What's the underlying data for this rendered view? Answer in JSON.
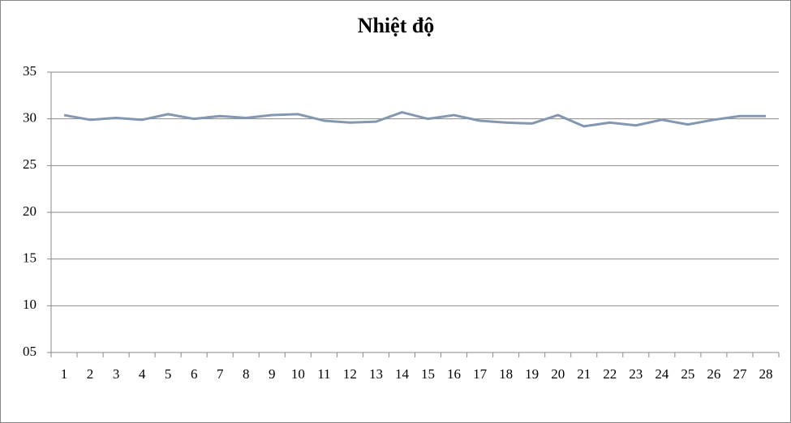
{
  "chart_data": {
    "type": "line",
    "title": "Nhiệt độ",
    "categories": [
      "1",
      "2",
      "3",
      "4",
      "5",
      "6",
      "7",
      "8",
      "9",
      "10",
      "11",
      "12",
      "13",
      "14",
      "15",
      "16",
      "17",
      "18",
      "19",
      "20",
      "21",
      "22",
      "23",
      "24",
      "25",
      "26",
      "27",
      "28"
    ],
    "series": [
      {
        "color": "#8497b0",
        "values": [
          30.4,
          29.9,
          30.1,
          29.9,
          30.5,
          30.0,
          30.3,
          30.1,
          30.4,
          30.5,
          29.8,
          29.6,
          29.7,
          30.7,
          30.0,
          30.4,
          29.8,
          29.6,
          29.5,
          30.4,
          29.2,
          29.6,
          29.3,
          29.9,
          29.4,
          29.9,
          30.3,
          30.3
        ]
      }
    ],
    "ylim": [
      5,
      35
    ],
    "yticks": [
      {
        "value": 5,
        "label": "05"
      },
      10,
      15,
      20,
      25,
      30,
      35
    ],
    "grid": true
  }
}
